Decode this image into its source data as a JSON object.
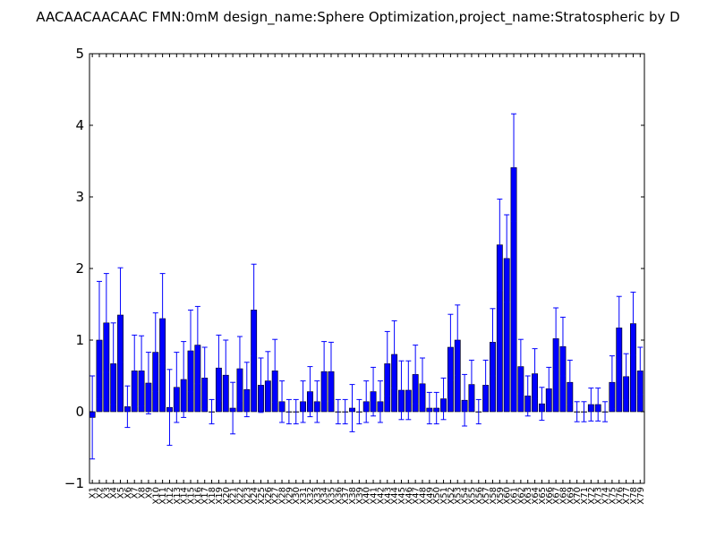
{
  "chart_data": {
    "type": "bar",
    "title": "AACAACAACAAC  FMN:0mM  design_name:Sphere Optimization,project_name:Stratospheric by D",
    "xlabel": "",
    "ylabel": "",
    "ylim": [
      -1,
      5
    ],
    "yticks": [
      -1,
      0,
      1,
      2,
      3,
      4,
      5
    ],
    "grid": false,
    "bar_color": "#0000ff",
    "error_color": "#0000ff",
    "categories": [
      "X1",
      "X2",
      "X3",
      "X4",
      "X5",
      "X6",
      "X7",
      "X8",
      "X9",
      "X10",
      "X11",
      "X12",
      "X13",
      "X14",
      "X15",
      "X16",
      "X17",
      "X18",
      "X19",
      "X20",
      "X21",
      "X22",
      "X23",
      "X24",
      "X25",
      "X26",
      "X27",
      "X28",
      "X29",
      "X30",
      "X31",
      "X32",
      "X33",
      "X34",
      "X35",
      "X36",
      "X37",
      "X38",
      "X39",
      "X40",
      "X41",
      "X42",
      "X43",
      "X44",
      "X45",
      "X46",
      "X47",
      "X48",
      "X49",
      "X50",
      "X51",
      "X52",
      "X53",
      "X54",
      "X55",
      "X56",
      "X57",
      "X58",
      "X59",
      "X60",
      "X61",
      "X62",
      "X63",
      "X64",
      "X65",
      "X66",
      "X67",
      "X68",
      "X69",
      "X70",
      "X71",
      "X72",
      "X73",
      "X74",
      "X75",
      "X76",
      "X77",
      "X78",
      "X79"
    ],
    "values": [
      -0.08,
      1.0,
      1.24,
      0.67,
      1.35,
      0.07,
      0.57,
      0.57,
      0.4,
      0.83,
      1.3,
      0.06,
      0.34,
      0.45,
      0.85,
      0.93,
      0.47,
      0.0,
      0.61,
      0.51,
      0.05,
      0.6,
      0.31,
      1.42,
      0.37,
      0.43,
      0.57,
      0.14,
      0.0,
      0.0,
      0.14,
      0.28,
      0.14,
      0.56,
      0.56,
      0.0,
      0.0,
      0.05,
      0.0,
      0.14,
      0.28,
      0.14,
      0.67,
      0.8,
      0.3,
      0.3,
      0.52,
      0.39,
      0.05,
      0.05,
      0.18,
      0.9,
      1.0,
      0.16,
      0.38,
      0.0,
      0.37,
      0.97,
      2.33,
      2.14,
      3.41,
      0.63,
      0.22,
      0.53,
      0.11,
      0.32,
      1.02,
      0.91,
      0.41,
      0.0,
      0.0,
      0.1,
      0.1,
      0.0,
      0.41,
      1.17,
      0.49,
      1.23,
      0.57
    ],
    "errors": [
      0.58,
      0.82,
      0.69,
      0.57,
      0.66,
      0.29,
      0.5,
      0.49,
      0.43,
      0.55,
      0.63,
      0.53,
      0.49,
      0.53,
      0.57,
      0.54,
      0.43,
      0.17,
      0.46,
      0.49,
      0.36,
      0.45,
      0.38,
      0.64,
      0.38,
      0.41,
      0.44,
      0.29,
      0.17,
      0.17,
      0.29,
      0.35,
      0.29,
      0.42,
      0.41,
      0.17,
      0.17,
      0.33,
      0.17,
      0.29,
      0.34,
      0.29,
      0.45,
      0.47,
      0.41,
      0.41,
      0.41,
      0.36,
      0.22,
      0.22,
      0.29,
      0.46,
      0.49,
      0.36,
      0.34,
      0.17,
      0.35,
      0.47,
      0.64,
      0.61,
      0.75,
      0.38,
      0.28,
      0.35,
      0.23,
      0.3,
      0.43,
      0.41,
      0.31,
      0.14,
      0.14,
      0.23,
      0.23,
      0.14,
      0.37,
      0.44,
      0.32,
      0.44,
      0.33
    ]
  }
}
